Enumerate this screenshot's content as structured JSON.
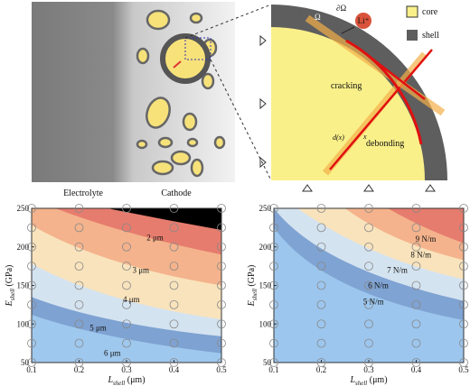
{
  "schematic": {
    "electrolyte": "Electrolyte",
    "cathode": "Cathode",
    "legend": [
      "core",
      "shell"
    ],
    "omega": "Ω",
    "boundary": "∂Ω",
    "ion": "Li⁺",
    "cracking": "cracking",
    "debonding": "debonding",
    "d_label": "d(x)",
    "x_label": "x"
  },
  "chart_data": [
    {
      "type": "contour",
      "xlim": [
        0.1,
        0.5
      ],
      "ylim": [
        50,
        250
      ],
      "xticks": [
        0.1,
        0.2,
        0.3,
        0.4,
        0.5
      ],
      "yticks": [
        50,
        100,
        150,
        200,
        250
      ],
      "x_label": {
        "main": "L",
        "sub": "shell",
        "unit": " (μm)"
      },
      "y_label": {
        "main": "E",
        "sub": "shell",
        "unit": " (GPa)"
      },
      "contour_labels": [
        "2 μm",
        "3 μm",
        "4 μm",
        "5 μm",
        "6 μm"
      ],
      "sample_x": [
        0.1,
        0.2,
        0.3,
        0.4,
        0.5
      ],
      "sample_y": [
        50,
        75,
        100,
        125,
        150,
        175,
        200,
        225,
        250
      ]
    },
    {
      "type": "contour",
      "xlim": [
        0.1,
        0.5
      ],
      "ylim": [
        50,
        250
      ],
      "xticks": [
        0.1,
        0.2,
        0.3,
        0.4,
        0.5
      ],
      "yticks": [
        50,
        100,
        150,
        200,
        250
      ],
      "x_label": {
        "main": "L",
        "sub": "shell",
        "unit": " (μm)"
      },
      "y_label": {
        "main": "E",
        "sub": "shell",
        "unit": " (GPa)"
      },
      "contour_labels": [
        "9 N/m",
        "8 N/m",
        "7 N/m",
        "6 N/m",
        "5 N/m"
      ],
      "sample_x": [
        0.1,
        0.2,
        0.3,
        0.4,
        0.5
      ],
      "sample_y": [
        50,
        75,
        100,
        125,
        150,
        175,
        200,
        225,
        250
      ]
    }
  ]
}
